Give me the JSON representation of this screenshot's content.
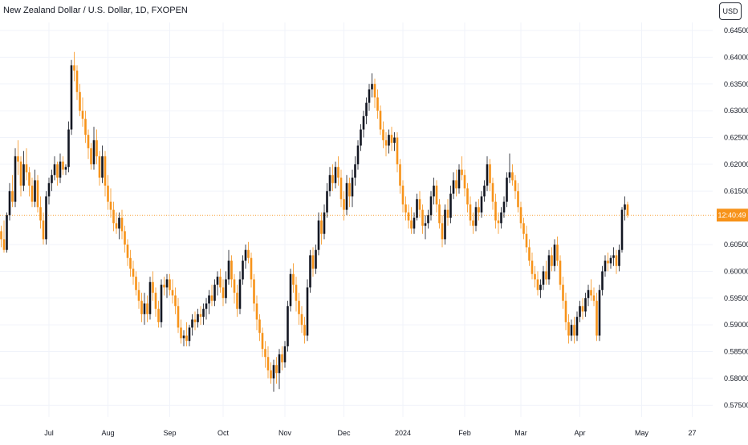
{
  "header": {
    "title": "New Zealand Dollar / U.S. Dollar, 1D, FXOPEN",
    "currency_button": "USD"
  },
  "price_label": "12:40:49",
  "colors": {
    "up": "#131722",
    "down": "#f7931a",
    "grid": "#f0f3fa",
    "axis_text": "#131722",
    "last_price": "#f7931a"
  },
  "chart_data": {
    "type": "candlestick",
    "symbol": "NZD/USD",
    "interval": "1D",
    "y_axis_position": "right",
    "ylim": [
      0.5728,
      0.6465
    ],
    "yticks": [
      {
        "value": 0.645,
        "label": "0.64500"
      },
      {
        "value": 0.64,
        "label": "0.64000"
      },
      {
        "value": 0.635,
        "label": "0.63500"
      },
      {
        "value": 0.63,
        "label": "0.63000"
      },
      {
        "value": 0.625,
        "label": "0.62500"
      },
      {
        "value": 0.62,
        "label": "0.62000"
      },
      {
        "value": 0.615,
        "label": "0.61500"
      },
      {
        "value": 0.605,
        "label": "0.60500"
      },
      {
        "value": 0.6,
        "label": "0.60000"
      },
      {
        "value": 0.595,
        "label": "0.59500"
      },
      {
        "value": 0.59,
        "label": "0.59000"
      },
      {
        "value": 0.585,
        "label": "0.58500"
      },
      {
        "value": 0.58,
        "label": "0.58000"
      },
      {
        "value": 0.575,
        "label": "0.57500"
      }
    ],
    "xticks": [
      {
        "index": 17,
        "label": "Jul"
      },
      {
        "index": 38,
        "label": "Aug"
      },
      {
        "index": 60,
        "label": "Sep"
      },
      {
        "index": 79,
        "label": "Oct"
      },
      {
        "index": 101,
        "label": "Nov"
      },
      {
        "index": 122,
        "label": "Dec"
      },
      {
        "index": 143,
        "label": "2024"
      },
      {
        "index": 165,
        "label": "Feb"
      },
      {
        "index": 185,
        "label": "Mar"
      },
      {
        "index": 206,
        "label": "Apr"
      },
      {
        "index": 228,
        "label": "May"
      },
      {
        "index": 246,
        "label": "27"
      }
    ],
    "last_price": 0.6105,
    "x_count": 252,
    "candles": [
      [
        0.6075,
        0.6085,
        0.6045,
        0.606
      ],
      [
        0.606,
        0.6095,
        0.6035,
        0.604
      ],
      [
        0.604,
        0.611,
        0.6035,
        0.6105
      ],
      [
        0.6105,
        0.6165,
        0.6095,
        0.615
      ],
      [
        0.615,
        0.618,
        0.612,
        0.613
      ],
      [
        0.613,
        0.623,
        0.612,
        0.6215
      ],
      [
        0.6215,
        0.6245,
        0.618,
        0.6205
      ],
      [
        0.6205,
        0.6215,
        0.614,
        0.616
      ],
      [
        0.616,
        0.6225,
        0.615,
        0.62
      ],
      [
        0.62,
        0.623,
        0.617,
        0.6185
      ],
      [
        0.6185,
        0.6195,
        0.614,
        0.616
      ],
      [
        0.616,
        0.6175,
        0.612,
        0.613
      ],
      [
        0.613,
        0.619,
        0.612,
        0.617
      ],
      [
        0.617,
        0.618,
        0.611,
        0.612
      ],
      [
        0.612,
        0.614,
        0.608,
        0.6095
      ],
      [
        0.6095,
        0.611,
        0.605,
        0.606
      ],
      [
        0.606,
        0.615,
        0.605,
        0.614
      ],
      [
        0.614,
        0.6175,
        0.6125,
        0.6165
      ],
      [
        0.6165,
        0.619,
        0.615,
        0.618
      ],
      [
        0.618,
        0.6215,
        0.617,
        0.62
      ],
      [
        0.62,
        0.6205,
        0.616,
        0.6175
      ],
      [
        0.6175,
        0.622,
        0.6165,
        0.6205
      ],
      [
        0.6205,
        0.6215,
        0.618,
        0.619
      ],
      [
        0.619,
        0.62,
        0.618,
        0.6195
      ],
      [
        0.6195,
        0.628,
        0.6185,
        0.6265
      ],
      [
        0.6265,
        0.6395,
        0.6255,
        0.6385
      ],
      [
        0.6385,
        0.641,
        0.6355,
        0.6375
      ],
      [
        0.6375,
        0.6385,
        0.632,
        0.6335
      ],
      [
        0.6335,
        0.635,
        0.629,
        0.63
      ],
      [
        0.63,
        0.6325,
        0.627,
        0.6285
      ],
      [
        0.6285,
        0.63,
        0.624,
        0.6255
      ],
      [
        0.6255,
        0.6265,
        0.621,
        0.623
      ],
      [
        0.623,
        0.624,
        0.619,
        0.62
      ],
      [
        0.62,
        0.627,
        0.619,
        0.6245
      ],
      [
        0.6245,
        0.6265,
        0.62,
        0.6215
      ],
      [
        0.6215,
        0.6225,
        0.616,
        0.6175
      ],
      [
        0.6175,
        0.6235,
        0.6165,
        0.6215
      ],
      [
        0.6215,
        0.6225,
        0.614,
        0.616
      ],
      [
        0.616,
        0.618,
        0.6115,
        0.613
      ],
      [
        0.613,
        0.6155,
        0.61,
        0.6115
      ],
      [
        0.6115,
        0.613,
        0.6075,
        0.609
      ],
      [
        0.609,
        0.611,
        0.607,
        0.608
      ],
      [
        0.608,
        0.611,
        0.606,
        0.61
      ],
      [
        0.61,
        0.6115,
        0.606,
        0.6075
      ],
      [
        0.6075,
        0.6085,
        0.6035,
        0.605
      ],
      [
        0.605,
        0.606,
        0.601,
        0.6025
      ],
      [
        0.6025,
        0.604,
        0.599,
        0.6005
      ],
      [
        0.6005,
        0.602,
        0.5975,
        0.599
      ],
      [
        0.599,
        0.6,
        0.5955,
        0.5965
      ],
      [
        0.5965,
        0.598,
        0.593,
        0.5945
      ],
      [
        0.5945,
        0.596,
        0.5905,
        0.592
      ],
      [
        0.592,
        0.596,
        0.59,
        0.594
      ],
      [
        0.594,
        0.5955,
        0.5905,
        0.592
      ],
      [
        0.592,
        0.599,
        0.591,
        0.598
      ],
      [
        0.598,
        0.6,
        0.5945,
        0.596
      ],
      [
        0.596,
        0.597,
        0.5915,
        0.593
      ],
      [
        0.593,
        0.5945,
        0.5895,
        0.5905
      ],
      [
        0.5905,
        0.5985,
        0.5895,
        0.5975
      ],
      [
        0.5975,
        0.599,
        0.5955,
        0.597
      ],
      [
        0.597,
        0.5995,
        0.595,
        0.5985
      ],
      [
        0.5985,
        0.5995,
        0.5955,
        0.5965
      ],
      [
        0.5965,
        0.5985,
        0.594,
        0.5955
      ],
      [
        0.5955,
        0.597,
        0.592,
        0.5935
      ],
      [
        0.5935,
        0.595,
        0.5885,
        0.5895
      ],
      [
        0.5895,
        0.591,
        0.5865,
        0.5875
      ],
      [
        0.5875,
        0.589,
        0.586,
        0.588
      ],
      [
        0.588,
        0.5905,
        0.586,
        0.587
      ],
      [
        0.587,
        0.59,
        0.586,
        0.5895
      ],
      [
        0.5895,
        0.592,
        0.588,
        0.591
      ],
      [
        0.591,
        0.5925,
        0.589,
        0.5905
      ],
      [
        0.5905,
        0.593,
        0.5895,
        0.592
      ],
      [
        0.592,
        0.5935,
        0.59,
        0.5915
      ],
      [
        0.5915,
        0.594,
        0.59,
        0.593
      ],
      [
        0.593,
        0.595,
        0.591,
        0.594
      ],
      [
        0.594,
        0.5965,
        0.592,
        0.5955
      ],
      [
        0.5955,
        0.5975,
        0.5935,
        0.5945
      ],
      [
        0.5945,
        0.5985,
        0.5935,
        0.5975
      ],
      [
        0.5975,
        0.6,
        0.5955,
        0.599
      ],
      [
        0.599,
        0.6005,
        0.596,
        0.597
      ],
      [
        0.597,
        0.5985,
        0.5935,
        0.595
      ],
      [
        0.595,
        0.6,
        0.594,
        0.5985
      ],
      [
        0.5985,
        0.604,
        0.5975,
        0.602
      ],
      [
        0.602,
        0.603,
        0.597,
        0.5985
      ],
      [
        0.5985,
        0.5995,
        0.594,
        0.596
      ],
      [
        0.596,
        0.5975,
        0.5915,
        0.593
      ],
      [
        0.593,
        0.6,
        0.592,
        0.5985
      ],
      [
        0.5985,
        0.603,
        0.5975,
        0.602
      ],
      [
        0.602,
        0.605,
        0.6005,
        0.604
      ],
      [
        0.604,
        0.6055,
        0.6015,
        0.6025
      ],
      [
        0.6025,
        0.6035,
        0.597,
        0.5985
      ],
      [
        0.5985,
        0.5995,
        0.5925,
        0.594
      ],
      [
        0.594,
        0.5955,
        0.589,
        0.591
      ],
      [
        0.591,
        0.592,
        0.587,
        0.5885
      ],
      [
        0.5885,
        0.5895,
        0.584,
        0.5855
      ],
      [
        0.5855,
        0.587,
        0.582,
        0.584
      ],
      [
        0.584,
        0.586,
        0.58,
        0.5815
      ],
      [
        0.5815,
        0.583,
        0.579,
        0.58
      ],
      [
        0.58,
        0.5835,
        0.5775,
        0.5825
      ],
      [
        0.5825,
        0.584,
        0.579,
        0.581
      ],
      [
        0.581,
        0.5855,
        0.578,
        0.5845
      ],
      [
        0.5845,
        0.586,
        0.5815,
        0.583
      ],
      [
        0.583,
        0.587,
        0.582,
        0.586
      ],
      [
        0.586,
        0.5945,
        0.585,
        0.5935
      ],
      [
        0.5935,
        0.6005,
        0.5925,
        0.5995
      ],
      [
        0.5995,
        0.6015,
        0.596,
        0.5975
      ],
      [
        0.5975,
        0.599,
        0.5925,
        0.5945
      ],
      [
        0.5945,
        0.596,
        0.59,
        0.592
      ],
      [
        0.592,
        0.5935,
        0.5885,
        0.59
      ],
      [
        0.59,
        0.5915,
        0.5865,
        0.588
      ],
      [
        0.588,
        0.5985,
        0.587,
        0.597
      ],
      [
        0.597,
        0.604,
        0.596,
        0.603
      ],
      [
        0.603,
        0.6045,
        0.599,
        0.6005
      ],
      [
        0.6005,
        0.605,
        0.5995,
        0.604
      ],
      [
        0.604,
        0.611,
        0.603,
        0.6095
      ],
      [
        0.6095,
        0.611,
        0.605,
        0.607
      ],
      [
        0.607,
        0.6125,
        0.606,
        0.611
      ],
      [
        0.611,
        0.6165,
        0.61,
        0.615
      ],
      [
        0.615,
        0.6195,
        0.614,
        0.618
      ],
      [
        0.618,
        0.62,
        0.615,
        0.6165
      ],
      [
        0.6165,
        0.6205,
        0.6155,
        0.6195
      ],
      [
        0.6195,
        0.6215,
        0.616,
        0.6175
      ],
      [
        0.6175,
        0.619,
        0.612,
        0.6135
      ],
      [
        0.6135,
        0.615,
        0.6095,
        0.6115
      ],
      [
        0.6115,
        0.618,
        0.6105,
        0.6165
      ],
      [
        0.6165,
        0.6175,
        0.612,
        0.614
      ],
      [
        0.614,
        0.619,
        0.612,
        0.6175
      ],
      [
        0.6175,
        0.6215,
        0.616,
        0.62
      ],
      [
        0.62,
        0.6245,
        0.619,
        0.6235
      ],
      [
        0.6235,
        0.6275,
        0.6225,
        0.6265
      ],
      [
        0.6265,
        0.63,
        0.625,
        0.629
      ],
      [
        0.629,
        0.6325,
        0.6275,
        0.6315
      ],
      [
        0.6315,
        0.635,
        0.63,
        0.634
      ],
      [
        0.634,
        0.637,
        0.6325,
        0.635
      ],
      [
        0.635,
        0.636,
        0.6305,
        0.6325
      ],
      [
        0.6325,
        0.634,
        0.6285,
        0.63
      ],
      [
        0.63,
        0.631,
        0.6255,
        0.6265
      ],
      [
        0.6265,
        0.628,
        0.623,
        0.6245
      ],
      [
        0.6245,
        0.626,
        0.6215,
        0.6235
      ],
      [
        0.6235,
        0.6265,
        0.622,
        0.6255
      ],
      [
        0.6255,
        0.627,
        0.6225,
        0.624
      ],
      [
        0.624,
        0.626,
        0.6225,
        0.625
      ],
      [
        0.625,
        0.626,
        0.6185,
        0.62
      ],
      [
        0.62,
        0.621,
        0.6145,
        0.616
      ],
      [
        0.616,
        0.617,
        0.611,
        0.6125
      ],
      [
        0.6125,
        0.614,
        0.6095,
        0.611
      ],
      [
        0.611,
        0.6125,
        0.608,
        0.6095
      ],
      [
        0.6095,
        0.612,
        0.607,
        0.608
      ],
      [
        0.608,
        0.611,
        0.607,
        0.61
      ],
      [
        0.61,
        0.6145,
        0.6095,
        0.6135
      ],
      [
        0.6135,
        0.615,
        0.61,
        0.6115
      ],
      [
        0.6115,
        0.6125,
        0.607,
        0.6085
      ],
      [
        0.6085,
        0.6105,
        0.606,
        0.609
      ],
      [
        0.609,
        0.6115,
        0.608,
        0.6105
      ],
      [
        0.6105,
        0.615,
        0.6095,
        0.614
      ],
      [
        0.614,
        0.6175,
        0.6125,
        0.616
      ],
      [
        0.616,
        0.617,
        0.611,
        0.6125
      ],
      [
        0.6125,
        0.6135,
        0.608,
        0.609
      ],
      [
        0.609,
        0.6105,
        0.6045,
        0.606
      ],
      [
        0.606,
        0.6125,
        0.605,
        0.6115
      ],
      [
        0.6115,
        0.6135,
        0.6085,
        0.61
      ],
      [
        0.61,
        0.616,
        0.609,
        0.6145
      ],
      [
        0.6145,
        0.6185,
        0.6135,
        0.617
      ],
      [
        0.617,
        0.619,
        0.614,
        0.6155
      ],
      [
        0.6155,
        0.62,
        0.6145,
        0.619
      ],
      [
        0.619,
        0.6215,
        0.617,
        0.618
      ],
      [
        0.618,
        0.619,
        0.614,
        0.6155
      ],
      [
        0.6155,
        0.6165,
        0.611,
        0.6125
      ],
      [
        0.6125,
        0.614,
        0.6085,
        0.6095
      ],
      [
        0.6095,
        0.611,
        0.607,
        0.6085
      ],
      [
        0.6085,
        0.613,
        0.6075,
        0.612
      ],
      [
        0.612,
        0.6135,
        0.6095,
        0.611
      ],
      [
        0.611,
        0.615,
        0.61,
        0.614
      ],
      [
        0.614,
        0.617,
        0.613,
        0.616
      ],
      [
        0.616,
        0.6215,
        0.615,
        0.62
      ],
      [
        0.62,
        0.621,
        0.615,
        0.6165
      ],
      [
        0.6165,
        0.6175,
        0.6115,
        0.613
      ],
      [
        0.613,
        0.6145,
        0.608,
        0.6095
      ],
      [
        0.6095,
        0.611,
        0.607,
        0.609
      ],
      [
        0.609,
        0.612,
        0.608,
        0.611
      ],
      [
        0.611,
        0.614,
        0.61,
        0.613
      ],
      [
        0.613,
        0.6185,
        0.612,
        0.6175
      ],
      [
        0.6175,
        0.622,
        0.6165,
        0.6185
      ],
      [
        0.6185,
        0.62,
        0.616,
        0.617
      ],
      [
        0.617,
        0.618,
        0.6135,
        0.615
      ],
      [
        0.615,
        0.6165,
        0.611,
        0.612
      ],
      [
        0.612,
        0.613,
        0.608,
        0.609
      ],
      [
        0.609,
        0.61,
        0.606,
        0.607
      ],
      [
        0.607,
        0.6085,
        0.6035,
        0.6045
      ],
      [
        0.6045,
        0.606,
        0.601,
        0.602
      ],
      [
        0.602,
        0.6035,
        0.5985,
        0.5995
      ],
      [
        0.5995,
        0.601,
        0.597,
        0.5985
      ],
      [
        0.5985,
        0.6,
        0.5955,
        0.5965
      ],
      [
        0.5965,
        0.5985,
        0.595,
        0.5975
      ],
      [
        0.5975,
        0.601,
        0.5965,
        0.6
      ],
      [
        0.6,
        0.602,
        0.5975,
        0.5985
      ],
      [
        0.5985,
        0.604,
        0.5975,
        0.603
      ],
      [
        0.603,
        0.6045,
        0.6,
        0.601
      ],
      [
        0.601,
        0.606,
        0.6,
        0.605
      ],
      [
        0.605,
        0.6065,
        0.601,
        0.602
      ],
      [
        0.602,
        0.603,
        0.5965,
        0.5975
      ],
      [
        0.5975,
        0.599,
        0.593,
        0.5945
      ],
      [
        0.5945,
        0.596,
        0.589,
        0.5905
      ],
      [
        0.5905,
        0.592,
        0.5865,
        0.588
      ],
      [
        0.588,
        0.591,
        0.587,
        0.59
      ],
      [
        0.59,
        0.5915,
        0.5865,
        0.588
      ],
      [
        0.588,
        0.5925,
        0.587,
        0.5915
      ],
      [
        0.5915,
        0.5945,
        0.5905,
        0.5935
      ],
      [
        0.5935,
        0.595,
        0.591,
        0.5925
      ],
      [
        0.5925,
        0.596,
        0.5915,
        0.595
      ],
      [
        0.595,
        0.5975,
        0.5935,
        0.5965
      ],
      [
        0.5965,
        0.5985,
        0.5945,
        0.5955
      ],
      [
        0.5955,
        0.597,
        0.5935,
        0.5945
      ],
      [
        0.5945,
        0.596,
        0.587,
        0.588
      ],
      [
        0.588,
        0.5975,
        0.587,
        0.5965
      ],
      [
        0.5965,
        0.601,
        0.5955,
        0.6
      ],
      [
        0.6,
        0.603,
        0.599,
        0.602
      ],
      [
        0.602,
        0.6035,
        0.6,
        0.6015
      ],
      [
        0.6015,
        0.603,
        0.6005,
        0.6025
      ],
      [
        0.6025,
        0.6045,
        0.601,
        0.603
      ],
      [
        0.603,
        0.604,
        0.5995,
        0.601
      ],
      [
        0.601,
        0.605,
        0.6,
        0.604
      ],
      [
        0.604,
        0.612,
        0.6035,
        0.6115
      ],
      [
        0.6115,
        0.614,
        0.6095,
        0.6125
      ],
      [
        0.6125,
        0.613,
        0.61,
        0.6105
      ]
    ]
  }
}
